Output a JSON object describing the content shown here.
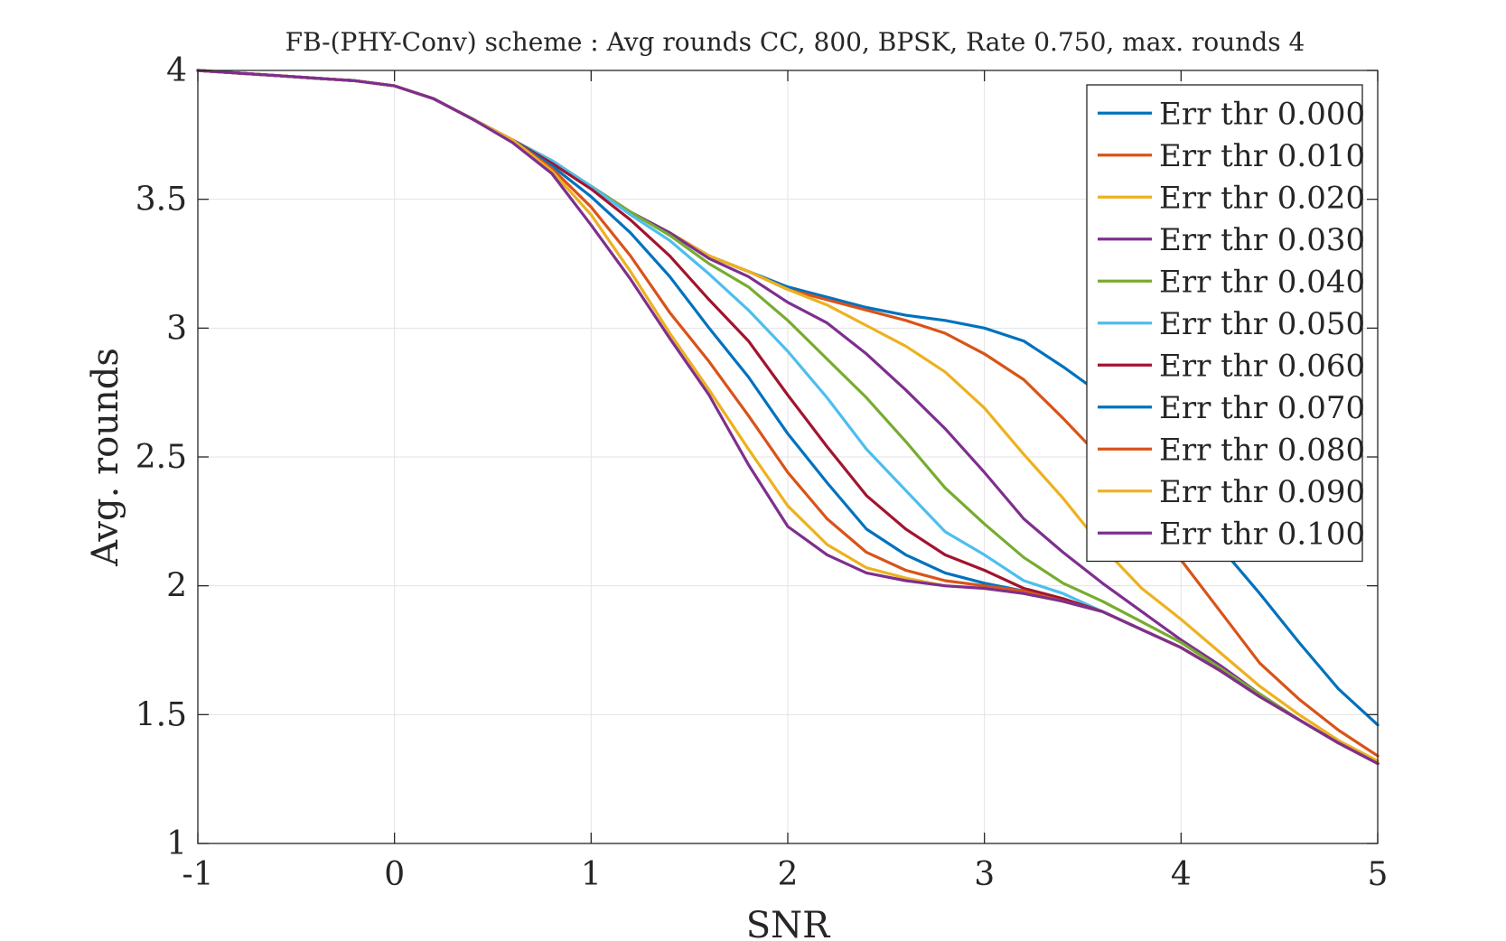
{
  "chart_data": {
    "type": "line",
    "title": "FB-(PHY-Conv) scheme : Avg rounds CC, 800, BPSK, Rate 0.750, max. rounds 4",
    "xlabel": "SNR",
    "ylabel": "Avg. rounds",
    "xlim": [
      -1,
      5
    ],
    "ylim": [
      1,
      4
    ],
    "xticks": [
      -1,
      0,
      1,
      2,
      3,
      4,
      5
    ],
    "yticks": [
      1,
      1.5,
      2,
      2.5,
      3,
      3.5,
      4
    ],
    "xtick_labels": [
      "-1",
      "0",
      "1",
      "2",
      "3",
      "4",
      "5"
    ],
    "ytick_labels": [
      "1",
      "1.5",
      "2",
      "2.5",
      "3",
      "3.5",
      "4"
    ],
    "grid": true,
    "legend_position": "top-right",
    "x": [
      -1,
      -0.8,
      -0.6,
      -0.4,
      -0.2,
      0,
      0.2,
      0.4,
      0.6,
      0.8,
      1,
      1.2,
      1.4,
      1.6,
      1.8,
      2,
      2.2,
      2.4,
      2.6,
      2.8,
      3,
      3.2,
      3.4,
      3.6,
      3.8,
      4,
      4.2,
      4.4,
      4.6,
      4.8,
      5
    ],
    "series": [
      {
        "name": "Err thr 0.000",
        "color": "#0072BD",
        "values": [
          4.0,
          3.99,
          3.98,
          3.97,
          3.96,
          3.94,
          3.89,
          3.81,
          3.73,
          3.65,
          3.55,
          3.45,
          3.37,
          3.28,
          3.22,
          3.16,
          3.12,
          3.08,
          3.05,
          3.03,
          3.0,
          2.95,
          2.85,
          2.74,
          2.57,
          2.35,
          2.15,
          1.97,
          1.78,
          1.6,
          1.46
        ]
      },
      {
        "name": "Err thr 0.010",
        "color": "#D95319",
        "values": [
          4.0,
          3.99,
          3.98,
          3.97,
          3.96,
          3.94,
          3.89,
          3.81,
          3.73,
          3.65,
          3.55,
          3.45,
          3.37,
          3.28,
          3.22,
          3.15,
          3.11,
          3.07,
          3.03,
          2.98,
          2.9,
          2.8,
          2.65,
          2.49,
          2.31,
          2.1,
          1.9,
          1.7,
          1.56,
          1.44,
          1.34
        ]
      },
      {
        "name": "Err thr 0.020",
        "color": "#EDB120",
        "values": [
          4.0,
          3.99,
          3.98,
          3.97,
          3.96,
          3.94,
          3.89,
          3.81,
          3.73,
          3.65,
          3.55,
          3.45,
          3.37,
          3.28,
          3.22,
          3.15,
          3.09,
          3.01,
          2.93,
          2.83,
          2.69,
          2.51,
          2.34,
          2.15,
          1.99,
          1.87,
          1.74,
          1.61,
          1.5,
          1.4,
          1.32
        ]
      },
      {
        "name": "Err thr 0.030",
        "color": "#7E2F8E",
        "values": [
          4.0,
          3.99,
          3.98,
          3.97,
          3.96,
          3.94,
          3.89,
          3.81,
          3.73,
          3.65,
          3.55,
          3.45,
          3.37,
          3.27,
          3.2,
          3.1,
          3.02,
          2.9,
          2.76,
          2.61,
          2.44,
          2.26,
          2.13,
          2.01,
          1.9,
          1.79,
          1.69,
          1.58,
          1.48,
          1.39,
          1.31
        ]
      },
      {
        "name": "Err thr 0.040",
        "color": "#77AC30",
        "values": [
          4.0,
          3.99,
          3.98,
          3.97,
          3.96,
          3.94,
          3.89,
          3.81,
          3.73,
          3.65,
          3.55,
          3.45,
          3.36,
          3.25,
          3.16,
          3.03,
          2.88,
          2.73,
          2.56,
          2.38,
          2.24,
          2.11,
          2.01,
          1.94,
          1.86,
          1.78,
          1.68,
          1.58,
          1.48,
          1.39,
          1.31
        ]
      },
      {
        "name": "Err thr 0.050",
        "color": "#4DBEEE",
        "values": [
          4.0,
          3.99,
          3.98,
          3.97,
          3.96,
          3.94,
          3.89,
          3.81,
          3.73,
          3.65,
          3.55,
          3.44,
          3.34,
          3.21,
          3.07,
          2.91,
          2.73,
          2.53,
          2.37,
          2.21,
          2.12,
          2.02,
          1.97,
          1.9,
          1.83,
          1.76,
          1.67,
          1.57,
          1.48,
          1.39,
          1.31
        ]
      },
      {
        "name": "Err thr 0.060",
        "color": "#A2142F",
        "values": [
          4.0,
          3.99,
          3.98,
          3.97,
          3.96,
          3.94,
          3.89,
          3.81,
          3.73,
          3.64,
          3.54,
          3.42,
          3.28,
          3.11,
          2.95,
          2.74,
          2.54,
          2.35,
          2.22,
          2.12,
          2.06,
          1.99,
          1.95,
          1.9,
          1.83,
          1.76,
          1.67,
          1.57,
          1.48,
          1.39,
          1.31
        ]
      },
      {
        "name": "Err thr 0.070",
        "color": "#0072BD",
        "values": [
          4.0,
          3.99,
          3.98,
          3.97,
          3.96,
          3.94,
          3.89,
          3.81,
          3.73,
          3.63,
          3.51,
          3.37,
          3.2,
          3.0,
          2.81,
          2.59,
          2.4,
          2.22,
          2.12,
          2.05,
          2.01,
          1.98,
          1.94,
          1.9,
          1.83,
          1.76,
          1.67,
          1.57,
          1.48,
          1.39,
          1.31
        ]
      },
      {
        "name": "Err thr 0.080",
        "color": "#D95319",
        "values": [
          4.0,
          3.99,
          3.98,
          3.97,
          3.96,
          3.94,
          3.89,
          3.81,
          3.73,
          3.62,
          3.47,
          3.28,
          3.06,
          2.87,
          2.66,
          2.44,
          2.26,
          2.13,
          2.06,
          2.02,
          2.0,
          1.98,
          1.94,
          1.9,
          1.83,
          1.76,
          1.67,
          1.57,
          1.48,
          1.39,
          1.31
        ]
      },
      {
        "name": "Err thr 0.090",
        "color": "#EDB120",
        "values": [
          4.0,
          3.99,
          3.98,
          3.97,
          3.96,
          3.94,
          3.89,
          3.81,
          3.73,
          3.61,
          3.44,
          3.22,
          2.98,
          2.76,
          2.53,
          2.31,
          2.16,
          2.07,
          2.03,
          2.0,
          1.99,
          1.97,
          1.94,
          1.9,
          1.83,
          1.76,
          1.67,
          1.57,
          1.48,
          1.39,
          1.31
        ]
      },
      {
        "name": "Err thr 0.100",
        "color": "#7E2F8E",
        "values": [
          4.0,
          3.99,
          3.98,
          3.97,
          3.96,
          3.94,
          3.89,
          3.81,
          3.72,
          3.6,
          3.4,
          3.19,
          2.96,
          2.74,
          2.47,
          2.23,
          2.12,
          2.05,
          2.02,
          2.0,
          1.99,
          1.97,
          1.94,
          1.9,
          1.83,
          1.76,
          1.67,
          1.57,
          1.48,
          1.39,
          1.31
        ]
      }
    ]
  }
}
